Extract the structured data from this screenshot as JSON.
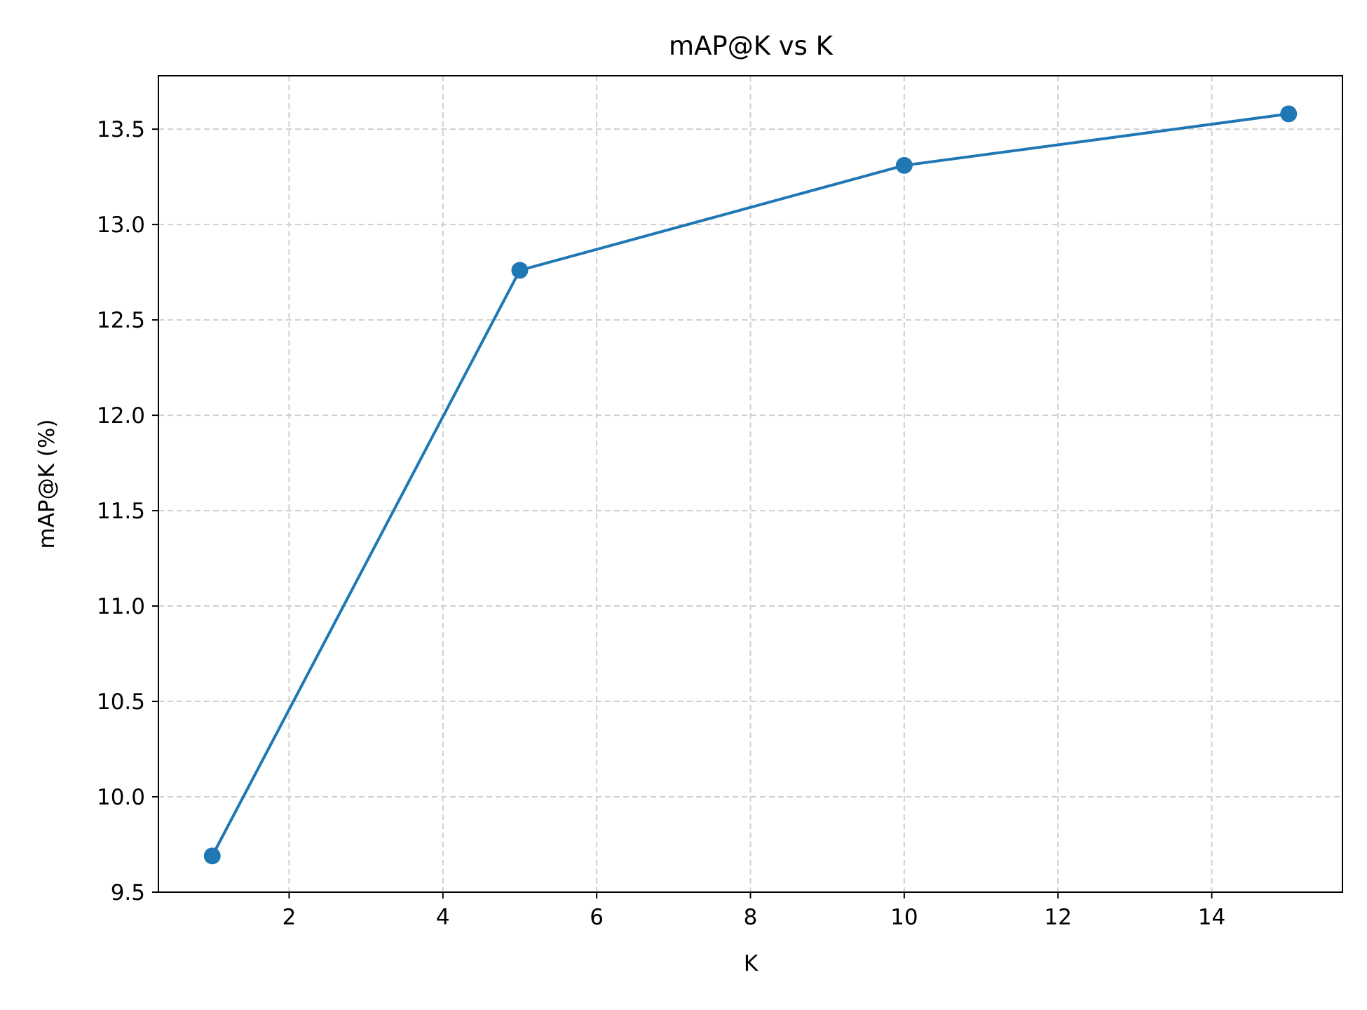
{
  "chart_data": {
    "type": "line",
    "title": "mAP@K vs K",
    "xlabel": "K",
    "ylabel": "mAP@K (%)",
    "xlim": [
      0.3,
      15.7
    ],
    "ylim": [
      9.5,
      13.78
    ],
    "xticks": [
      2,
      4,
      6,
      8,
      10,
      12,
      14
    ],
    "yticks": [
      9.5,
      10.0,
      10.5,
      11.0,
      11.5,
      12.0,
      12.5,
      13.0,
      13.5
    ],
    "xtick_labels": [
      "2",
      "4",
      "6",
      "8",
      "10",
      "12",
      "14"
    ],
    "ytick_labels": [
      "9.5",
      "10.0",
      "10.5",
      "11.0",
      "11.5",
      "12.0",
      "12.5",
      "13.0",
      "13.5"
    ],
    "grid": true,
    "series": [
      {
        "color": "#1f77b4",
        "marker": "circle",
        "x": [
          1,
          5,
          10,
          15
        ],
        "y": [
          9.69,
          12.76,
          13.31,
          13.58
        ]
      }
    ]
  }
}
